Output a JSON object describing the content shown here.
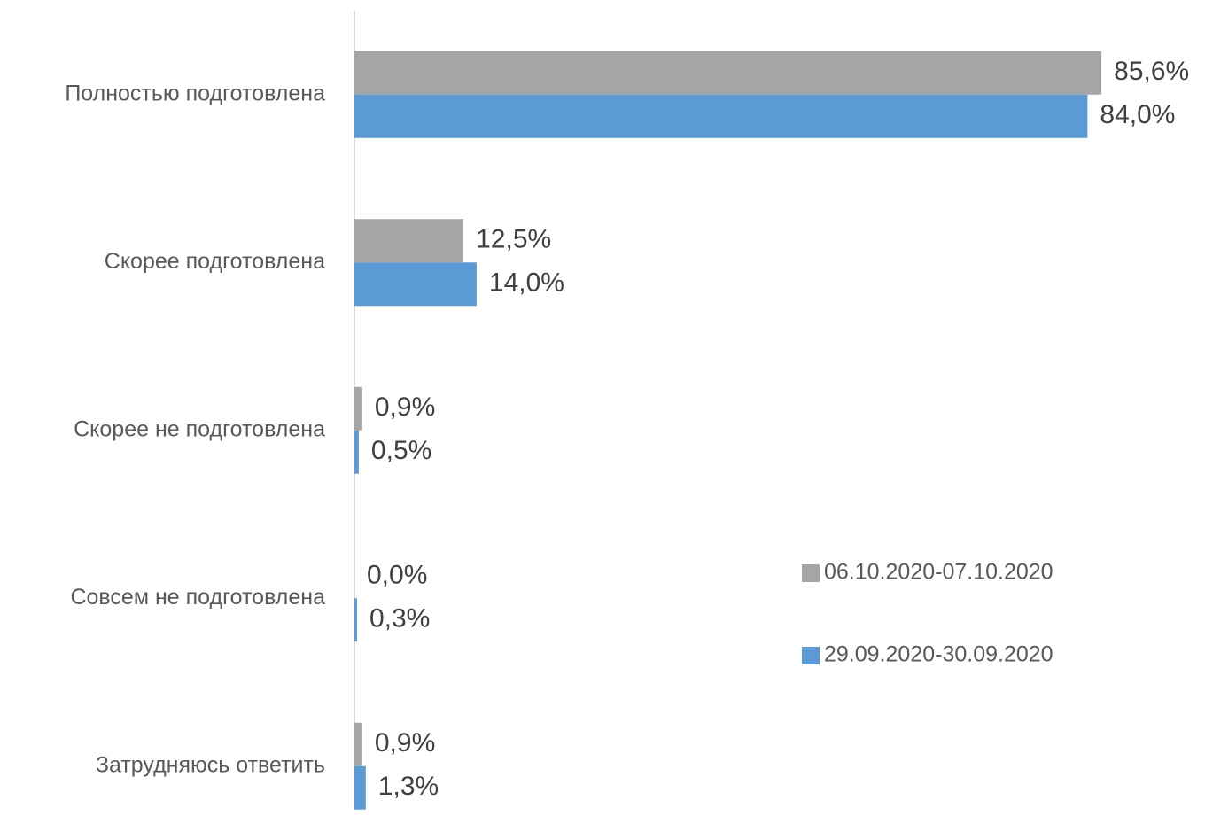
{
  "chart_data": {
    "type": "hbar",
    "categories": [
      "Полностью подготовлена",
      "Скорее подготовлена",
      "Скорее  не подготовлена",
      "Совсем не подготовлена",
      "Затрудняюсь ответить"
    ],
    "series": [
      {
        "name": "06.10.2020-07.10.2020",
        "color": "#a5a5a5",
        "values": [
          85.6,
          12.5,
          0.9,
          0.0,
          0.9
        ],
        "value_labels": [
          "85,6%",
          "12,5%",
          "0,9%",
          "0,0%",
          "0,9%"
        ]
      },
      {
        "name": "29.09.2020-30.09.2020",
        "color": "#5b9bd5",
        "values": [
          84.0,
          14.0,
          0.5,
          0.3,
          1.3
        ],
        "value_labels": [
          "84,0%",
          "14,0%",
          "0,5%",
          "0,3%",
          "1,3%"
        ]
      }
    ],
    "legend": "right"
  }
}
